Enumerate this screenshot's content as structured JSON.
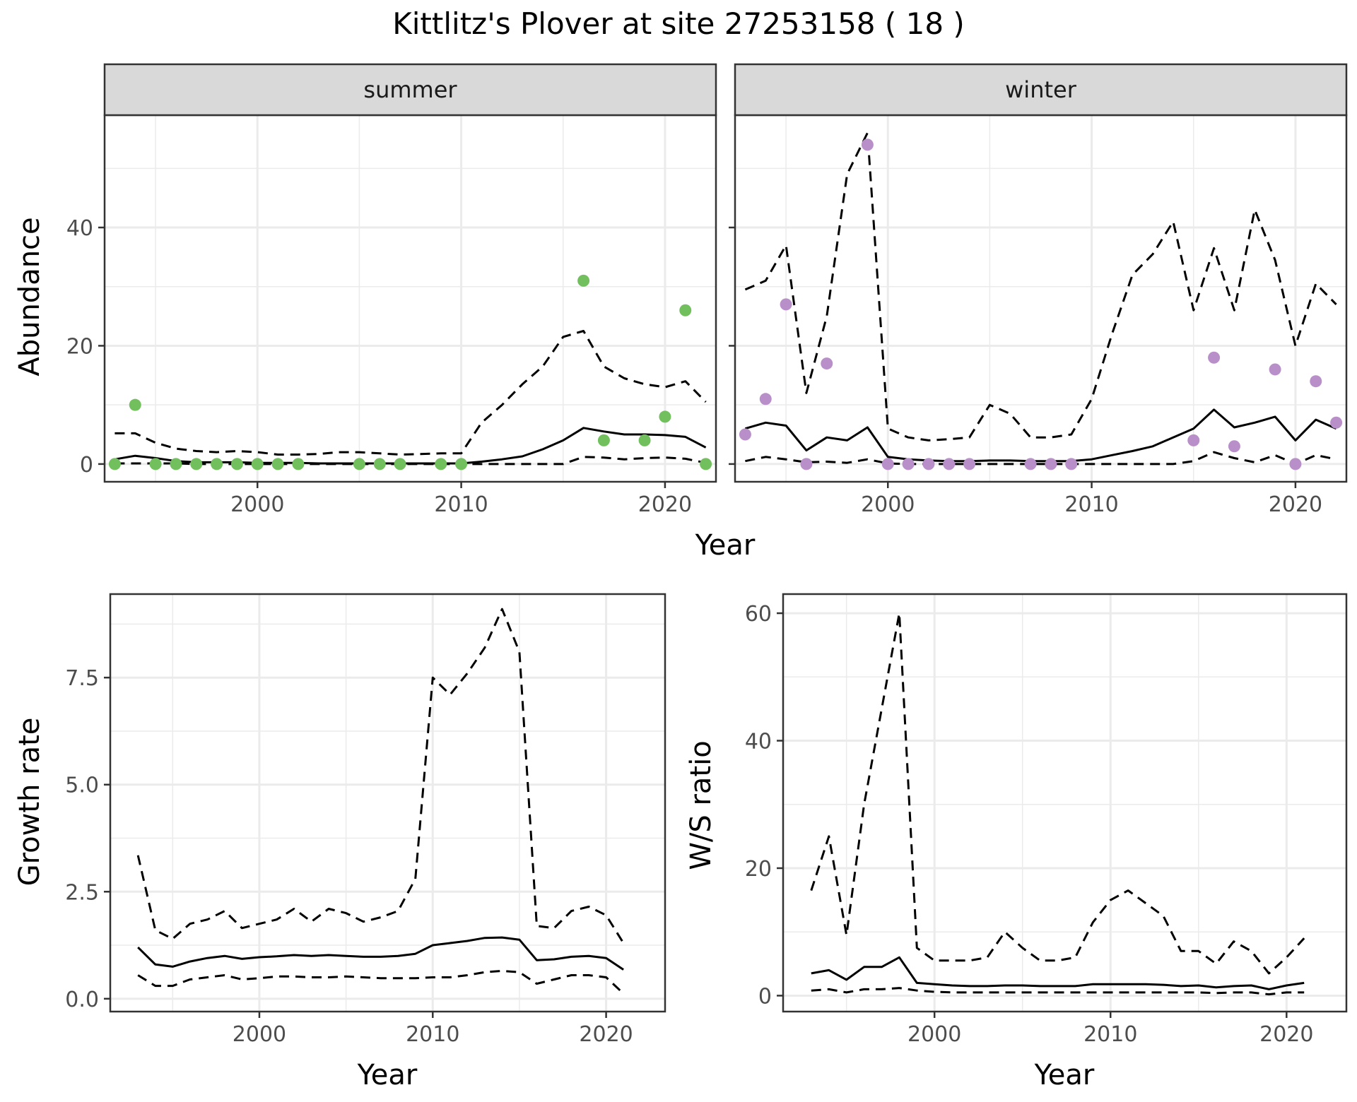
{
  "title": "Kittlitz's Plover at site 27253158 ( 18 )",
  "colors": {
    "summer_points": "#72BF5E",
    "winter_points": "#B98FC9",
    "line": "#000000",
    "strip_fill": "#D9D9D9",
    "grid": "#EBEBEB",
    "panel_border": "#333333"
  },
  "chart_data": [
    {
      "type": "line",
      "panel": "summer",
      "strip_label": "summer",
      "xlabel": "Year",
      "ylabel": "Abundance",
      "xlim": [
        1992.5,
        2022.5
      ],
      "ylim": [
        -3,
        59
      ],
      "xticks": [
        2000,
        2010,
        2020
      ],
      "yticks": [
        0,
        20,
        40
      ],
      "grid": true,
      "x": [
        1993,
        1994,
        1995,
        1996,
        1997,
        1998,
        1999,
        2000,
        2001,
        2002,
        2003,
        2004,
        2005,
        2006,
        2007,
        2008,
        2009,
        2010,
        2011,
        2012,
        2013,
        2014,
        2015,
        2016,
        2017,
        2018,
        2019,
        2020,
        2021,
        2022
      ],
      "series": [
        {
          "line_style": "dashed",
          "values": [
            5.2,
            5.2,
            3.6,
            2.6,
            2.2,
            2.0,
            2.2,
            2.0,
            1.6,
            1.6,
            1.7,
            2.0,
            2.0,
            1.8,
            1.6,
            1.7,
            1.8,
            1.8,
            7.0,
            10.0,
            13.5,
            16.5,
            21.5,
            22.5,
            16.5,
            14.5,
            13.5,
            13.0,
            14.0,
            10.5
          ]
        },
        {
          "line_style": "solid",
          "values": [
            0.8,
            1.4,
            1.0,
            0.5,
            0.3,
            0.3,
            0.3,
            0.2,
            0.2,
            0.2,
            0.1,
            0.1,
            0.1,
            0.1,
            0.1,
            0.1,
            0.1,
            0.1,
            0.4,
            0.8,
            1.3,
            2.5,
            4.0,
            6.1,
            5.5,
            5.0,
            5.0,
            4.9,
            4.6,
            2.8
          ]
        },
        {
          "line_style": "dashed",
          "values": [
            0.1,
            0.1,
            0.1,
            0.1,
            0.0,
            0.0,
            0.0,
            0.0,
            0.0,
            0.0,
            0.0,
            0.0,
            0.0,
            0.0,
            0.0,
            0.0,
            0.0,
            0.0,
            0.0,
            0.0,
            0.0,
            0.0,
            0.0,
            1.2,
            1.1,
            0.8,
            1.0,
            1.1,
            0.9,
            0.2
          ]
        }
      ],
      "points": {
        "x": [
          1993,
          1994,
          1995,
          1996,
          1997,
          1998,
          1999,
          2000,
          2001,
          2002,
          2005,
          2006,
          2007,
          2009,
          2010,
          2016,
          2017,
          2019,
          2020,
          2021,
          2022
        ],
        "y": [
          0,
          10,
          0,
          0,
          0,
          0,
          0,
          0,
          0,
          0,
          0,
          0,
          0,
          0,
          0,
          31,
          4,
          4,
          8,
          26,
          0
        ]
      }
    },
    {
      "type": "line",
      "panel": "winter",
      "strip_label": "winter",
      "xlabel": "Year",
      "ylabel": "Abundance",
      "xlim": [
        1992.5,
        2022.5
      ],
      "ylim": [
        -3,
        59
      ],
      "xticks": [
        2000,
        2010,
        2020
      ],
      "yticks": [
        0,
        20,
        40
      ],
      "grid": true,
      "x": [
        1993,
        1994,
        1995,
        1996,
        1997,
        1998,
        1999,
        2000,
        2001,
        2002,
        2003,
        2004,
        2005,
        2006,
        2007,
        2008,
        2009,
        2010,
        2011,
        2012,
        2013,
        2014,
        2015,
        2016,
        2017,
        2018,
        2019,
        2020,
        2021,
        2022
      ],
      "series": [
        {
          "line_style": "dashed",
          "values": [
            29.5,
            31.0,
            37.0,
            12.0,
            25.0,
            49.0,
            56.0,
            6.0,
            4.5,
            4.0,
            4.2,
            4.5,
            10.0,
            8.5,
            4.5,
            4.5,
            5.0,
            11.0,
            22.0,
            32.0,
            35.5,
            41.0,
            26.0,
            36.5,
            26.0,
            43.0,
            34.5,
            20.0,
            30.5,
            27.0
          ]
        },
        {
          "line_style": "solid",
          "values": [
            6.0,
            7.0,
            6.5,
            2.3,
            4.5,
            4.0,
            6.2,
            1.2,
            0.8,
            0.6,
            0.5,
            0.5,
            0.6,
            0.6,
            0.5,
            0.5,
            0.5,
            0.8,
            1.5,
            2.2,
            3.0,
            4.5,
            6.0,
            9.2,
            6.2,
            7.0,
            8.0,
            4.0,
            7.5,
            6.0
          ]
        },
        {
          "line_style": "dashed",
          "values": [
            0.5,
            1.2,
            0.8,
            0.3,
            0.4,
            0.2,
            0.8,
            0.1,
            0.0,
            0.0,
            0.0,
            0.0,
            0.0,
            0.0,
            0.0,
            0.0,
            0.0,
            0.0,
            0.0,
            0.0,
            0.0,
            0.0,
            0.5,
            2.0,
            1.0,
            0.3,
            1.5,
            0.0,
            1.5,
            0.8
          ]
        }
      ],
      "points": {
        "x": [
          1993,
          1994,
          1995,
          1996,
          1997,
          1999,
          2000,
          2001,
          2002,
          2003,
          2004,
          2007,
          2008,
          2009,
          2015,
          2016,
          2017,
          2019,
          2020,
          2021,
          2022
        ],
        "y": [
          5,
          11,
          27,
          0,
          17,
          54,
          0,
          0,
          0,
          0,
          0,
          0,
          0,
          0,
          4,
          18,
          3,
          16,
          0,
          14,
          7
        ]
      }
    },
    {
      "type": "line",
      "panel": "growth",
      "xlabel": "Year",
      "ylabel": "Growth rate",
      "xlim": [
        1991.4,
        2023.4
      ],
      "ylim": [
        -0.3,
        9.45
      ],
      "xticks": [
        2000,
        2010,
        2020
      ],
      "yticks": [
        0.0,
        2.5,
        5.0,
        7.5
      ],
      "ytick_labels": [
        "0.0",
        "2.5",
        "5.0",
        "7.5"
      ],
      "grid": true,
      "x": [
        1993,
        1994,
        1995,
        1996,
        1997,
        1998,
        1999,
        2000,
        2001,
        2002,
        2003,
        2004,
        2005,
        2006,
        2007,
        2008,
        2009,
        2010,
        2011,
        2012,
        2013,
        2014,
        2015,
        2016,
        2017,
        2018,
        2019,
        2020,
        2021
      ],
      "series": [
        {
          "line_style": "dashed",
          "values": [
            3.35,
            1.6,
            1.4,
            1.75,
            1.85,
            2.05,
            1.65,
            1.75,
            1.85,
            2.1,
            1.8,
            2.1,
            2.0,
            1.8,
            1.9,
            2.05,
            2.8,
            7.5,
            7.1,
            7.6,
            8.2,
            9.1,
            8.1,
            1.7,
            1.65,
            2.05,
            2.15,
            1.95,
            1.3
          ]
        },
        {
          "line_style": "solid",
          "values": [
            1.2,
            0.8,
            0.75,
            0.87,
            0.95,
            1.0,
            0.93,
            0.97,
            0.99,
            1.02,
            1.0,
            1.02,
            1.0,
            0.98,
            0.98,
            1.0,
            1.05,
            1.25,
            1.3,
            1.35,
            1.42,
            1.43,
            1.38,
            0.9,
            0.92,
            0.98,
            1.0,
            0.95,
            0.68
          ]
        },
        {
          "line_style": "dashed",
          "values": [
            0.55,
            0.3,
            0.3,
            0.45,
            0.5,
            0.55,
            0.45,
            0.48,
            0.52,
            0.52,
            0.5,
            0.5,
            0.52,
            0.5,
            0.48,
            0.48,
            0.48,
            0.5,
            0.5,
            0.55,
            0.62,
            0.65,
            0.62,
            0.35,
            0.45,
            0.55,
            0.55,
            0.5,
            0.12
          ]
        }
      ]
    },
    {
      "type": "line",
      "panel": "ratio",
      "xlabel": "Year",
      "ylabel": "W/S ratio",
      "xlim": [
        1991.4,
        2023.4
      ],
      "ylim": [
        -2.5,
        63
      ],
      "xticks": [
        2000,
        2010,
        2020
      ],
      "yticks": [
        0,
        20,
        40,
        60
      ],
      "grid": true,
      "x": [
        1993,
        1994,
        1995,
        1996,
        1997,
        1998,
        1999,
        2000,
        2001,
        2002,
        2003,
        2004,
        2005,
        2006,
        2007,
        2008,
        2009,
        2010,
        2011,
        2012,
        2013,
        2014,
        2015,
        2016,
        2017,
        2018,
        2019,
        2020,
        2021
      ],
      "series": [
        {
          "line_style": "dashed",
          "values": [
            16.5,
            25.0,
            9.5,
            30.0,
            45.0,
            60.0,
            7.5,
            5.5,
            5.5,
            5.5,
            6.0,
            10.0,
            7.5,
            5.5,
            5.5,
            6.0,
            11.5,
            15.0,
            16.5,
            14.5,
            12.5,
            7.0,
            7.0,
            5.0,
            8.5,
            7.0,
            3.5,
            6.0,
            9.0
          ]
        },
        {
          "line_style": "solid",
          "values": [
            3.5,
            4.0,
            2.5,
            4.5,
            4.5,
            6.0,
            2.0,
            1.8,
            1.6,
            1.5,
            1.5,
            1.6,
            1.6,
            1.5,
            1.5,
            1.5,
            1.8,
            1.8,
            1.8,
            1.8,
            1.7,
            1.5,
            1.6,
            1.3,
            1.5,
            1.6,
            1.0,
            1.6,
            2.0
          ]
        },
        {
          "line_style": "dashed",
          "values": [
            0.8,
            1.0,
            0.5,
            1.0,
            1.0,
            1.2,
            0.8,
            0.6,
            0.5,
            0.5,
            0.5,
            0.5,
            0.5,
            0.5,
            0.5,
            0.5,
            0.5,
            0.5,
            0.5,
            0.5,
            0.5,
            0.5,
            0.5,
            0.4,
            0.5,
            0.5,
            0.2,
            0.5,
            0.5
          ]
        }
      ]
    }
  ]
}
